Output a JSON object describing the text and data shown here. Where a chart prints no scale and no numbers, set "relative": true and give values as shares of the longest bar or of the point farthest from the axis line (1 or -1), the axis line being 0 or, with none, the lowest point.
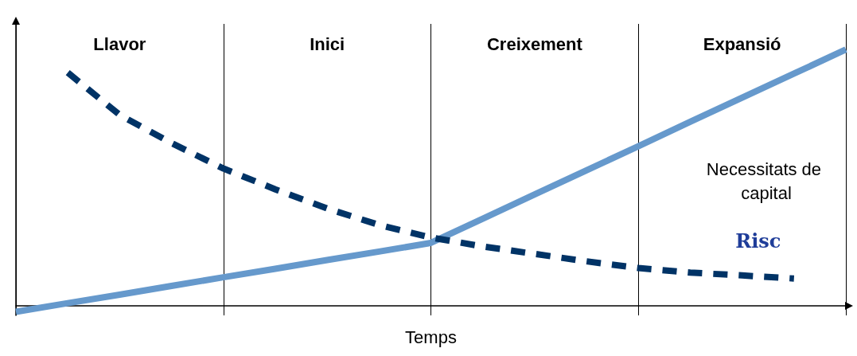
{
  "chart_data": {
    "type": "line",
    "relative": true,
    "xlabel": "Temps",
    "grid": "x",
    "legend": false,
    "categories": [
      null,
      null,
      "Llavor",
      null,
      null,
      null,
      "Inici",
      null,
      null,
      null,
      "Creixement",
      null,
      null,
      null,
      "Expansió",
      null,
      null
    ],
    "series": [
      {
        "name": "Necessitats de capital",
        "color": "#6699cc",
        "line_style": "solid",
        "values": [
          -0.023,
          0.011,
          0.044,
          0.078,
          0.112,
          0.145,
          0.179,
          0.212,
          0.246,
          0.34,
          0.435,
          0.529,
          0.623,
          0.718,
          0.812,
          0.906,
          1.0
        ]
      },
      {
        "name": "Risc",
        "color": "#003366",
        "line_style": "dashed",
        "values": [
          null,
          0.91,
          0.745,
          0.635,
          0.536,
          0.455,
          0.38,
          0.316,
          0.267,
          0.232,
          0.203,
          0.174,
          0.148,
          0.13,
          0.119,
          0.107,
          null
        ]
      }
    ]
  }
}
